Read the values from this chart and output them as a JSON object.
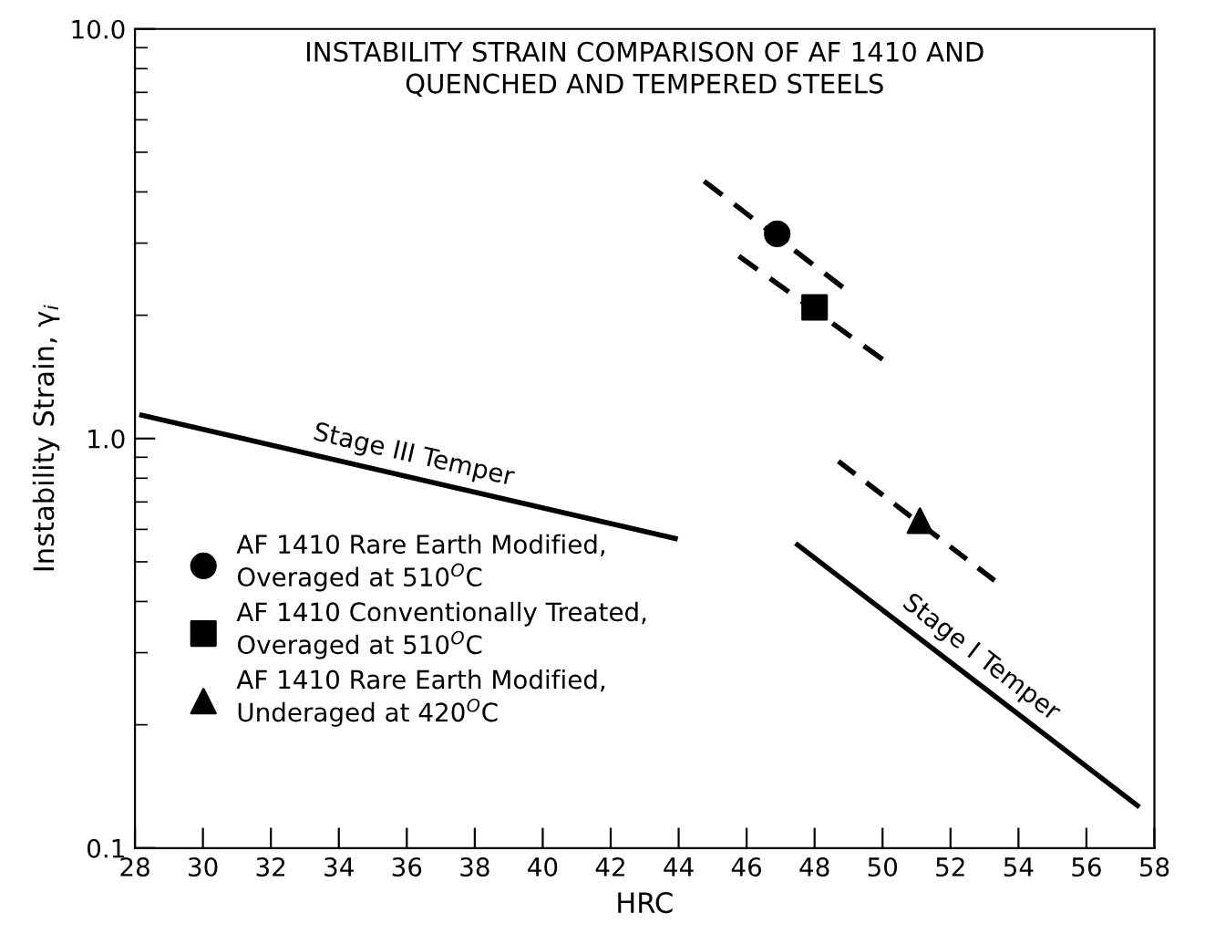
{
  "chart_data": {
    "type": "line",
    "title": "INSTABILITY STRAIN COMPARISON OF AF 1410 AND\nQUENCHED AND TEMPERED STEELS",
    "xlabel": "HRC",
    "ylabel": "Instability Strain, γ$_{i}$",
    "log": "y",
    "xlim": [
      28,
      58
    ],
    "xticks": [
      28,
      30,
      32,
      34,
      36,
      38,
      40,
      42,
      44,
      46,
      48,
      50,
      52,
      54,
      56,
      58
    ],
    "ylim": [
      0.1,
      10
    ],
    "yticks": [
      {
        "value": 0.1,
        "label": "0.1"
      },
      {
        "value": 1,
        "label": "1.0"
      },
      {
        "value": 10,
        "label": "10.0"
      }
    ],
    "grid": false,
    "legend": "bottom left",
    "series": [
      {
        "type": "scatter",
        "name": "AF 1410 Rare Earth Modified,\nOveraged at 510$^{O}$C",
        "color": "#000000",
        "marker": "circle",
        "x": [
          46.9
        ],
        "values": [
          3.16
        ]
      },
      {
        "type": "scatter",
        "name": "AF 1410 Conventionally Treated,\nOveraged at 510$^{O}$C",
        "color": "#000000",
        "marker": "square",
        "x": [
          48
        ],
        "values": [
          2.09
        ]
      },
      {
        "type": "scatter",
        "name": "AF 1410 Rare Earth Modified,\nUnderaged at 420$^{O}$C",
        "color": "#000000",
        "marker": "triangle",
        "x": [
          51.1
        ],
        "values": [
          0.63
        ]
      },
      {
        "color": "#000000",
        "line_style": "dashed",
        "x": [
          44.75,
          48.83
        ],
        "values": [
          4.25,
          2.34
        ]
      },
      {
        "color": "#000000",
        "line_style": "dashed",
        "x": [
          45.77,
          50.0
        ],
        "values": [
          2.79,
          1.56
        ]
      },
      {
        "color": "#000000",
        "line_style": "dashed",
        "x": [
          48.7,
          53.3
        ],
        "values": [
          0.88,
          0.45
        ]
      },
      {
        "name": "Stage III Temper",
        "color": "#000000",
        "line_style": "solid",
        "x": [
          28.2,
          43.9
        ],
        "values": [
          1.14,
          0.57
        ]
      },
      {
        "name": "Stage I Temper",
        "color": "#000000",
        "line_style": "solid",
        "x": [
          47.5,
          57.5
        ],
        "values": [
          0.55,
          0.127
        ]
      }
    ]
  }
}
